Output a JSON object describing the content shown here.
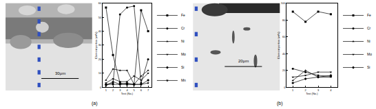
{
  "chart_data": [
    {
      "type": "line",
      "x_label": "Test (No.)",
      "y_label": "Element portion (wt%)",
      "x": [
        1,
        2,
        3,
        4,
        5,
        6,
        7
      ],
      "xlim": [
        0.5,
        7.5
      ],
      "xticks": [
        1,
        2,
        3,
        4,
        5,
        6,
        7
      ],
      "ylim": [
        0,
        60
      ],
      "yticks": [
        0,
        10,
        20,
        30,
        40,
        50,
        60
      ],
      "grid": false,
      "legend": "right",
      "series": [
        {
          "name": "Fe",
          "color": "#000000",
          "marker": "square",
          "values": [
            57,
            23,
            3,
            2,
            2,
            55,
            40
          ]
        },
        {
          "name": "Cr",
          "color": "#000000",
          "marker": "circle",
          "values": [
            2,
            3,
            52,
            57,
            58,
            3,
            20
          ]
        },
        {
          "name": "Ni",
          "color": "#000000",
          "marker": "triangle-up",
          "values": [
            5,
            13,
            12,
            12,
            2,
            8,
            12
          ]
        },
        {
          "name": "Mo",
          "color": "#000000",
          "marker": "triangle-down",
          "values": [
            3,
            6,
            4,
            4,
            8,
            5,
            10
          ]
        },
        {
          "name": "Si",
          "color": "#000000",
          "marker": "diamond",
          "values": [
            2,
            2,
            2,
            3,
            2,
            2,
            5
          ]
        },
        {
          "name": "Mn",
          "color": "#000000",
          "marker": "star",
          "values": [
            1,
            4,
            2,
            2,
            2,
            2,
            3
          ]
        }
      ]
    },
    {
      "type": "line",
      "x_label": "Test (No.)",
      "y_label": "Element portion (wt%)",
      "x": [
        1,
        2,
        3,
        4
      ],
      "xlim": [
        0.5,
        4.5
      ],
      "xticks": [
        1,
        2,
        3,
        4
      ],
      "ylim": [
        0,
        100
      ],
      "yticks": [
        0,
        20,
        40,
        60,
        80,
        100
      ],
      "grid": false,
      "legend": "right",
      "series": [
        {
          "name": "Fe",
          "color": "#000000",
          "marker": "square",
          "values": [
            90,
            78,
            90,
            87
          ]
        },
        {
          "name": "Cr",
          "color": "#000000",
          "marker": "circle",
          "values": [
            22,
            18,
            14,
            13
          ]
        },
        {
          "name": "Ni",
          "color": "#000000",
          "marker": "triangle-up",
          "values": [
            8,
            20,
            12,
            12
          ]
        },
        {
          "name": "Mo",
          "color": "#000000",
          "marker": "triangle-down",
          "values": [
            12,
            14,
            18,
            18
          ]
        },
        {
          "name": "Si",
          "color": "#000000",
          "marker": "diamond",
          "values": [
            5,
            10,
            12,
            14
          ]
        }
      ]
    }
  ],
  "panels": [
    {
      "label": "(a)",
      "scale_bar": "30μm"
    },
    {
      "label": "(b)",
      "scale_bar": "20μm"
    }
  ]
}
